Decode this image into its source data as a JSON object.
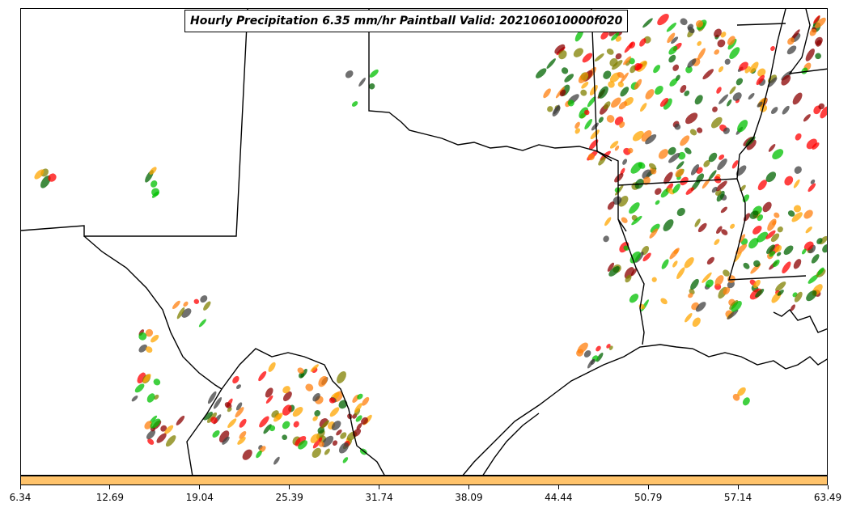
{
  "title": "Hourly Precipitation 6.35 mm/hr Paintball Valid: 202106010000f020",
  "colorbar": {
    "color": "#ffc36b",
    "ticks": [
      "6.34",
      "12.69",
      "19.04",
      "25.39",
      "31.74",
      "38.09",
      "44.44",
      "50.79",
      "57.14",
      "63.49"
    ]
  },
  "ensemble_colors": [
    "#8b0000",
    "#ff0000",
    "#ff7f0e",
    "#ffa500",
    "#808000",
    "#00c000",
    "#006400",
    "#404040"
  ]
}
